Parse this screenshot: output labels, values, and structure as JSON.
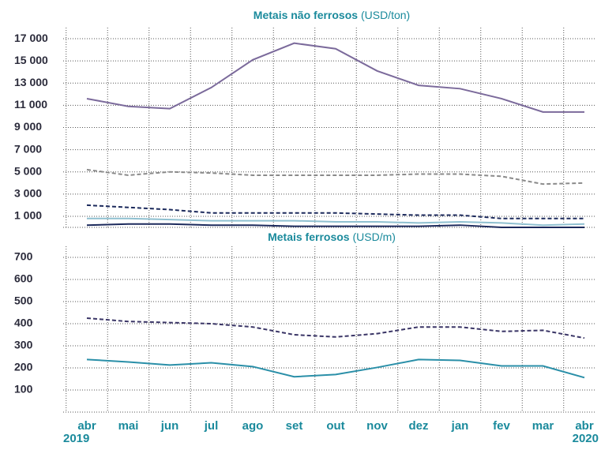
{
  "chart_data": [
    {
      "type": "line",
      "title": "Metais não ferrosos",
      "title_unit": "(USD/ton)",
      "ylim": [
        0,
        18000
      ],
      "yticks": [
        {
          "value": 1000,
          "label": "1 000"
        },
        {
          "value": 3000,
          "label": "3 000"
        },
        {
          "value": 5000,
          "label": "5 000"
        },
        {
          "value": 7000,
          "label": "7 000"
        },
        {
          "value": 9000,
          "label": "9 000"
        },
        {
          "value": 11000,
          "label": "11 000"
        },
        {
          "value": 13000,
          "label": "13 000"
        },
        {
          "value": 15000,
          "label": "15 000"
        },
        {
          "value": 17000,
          "label": "17 000"
        }
      ],
      "grid": true,
      "series": [
        {
          "color": "#7b6a9b",
          "dashed": false,
          "values": [
            11600,
            10900,
            10700,
            12600,
            15100,
            16600,
            16100,
            14100,
            12800,
            12500,
            11600,
            10400,
            10400
          ]
        },
        {
          "color": "#8a8a8a",
          "dashed": true,
          "values": [
            5200,
            4700,
            5000,
            4900,
            4700,
            4700,
            4700,
            4700,
            4800,
            4800,
            4600,
            3900,
            4000
          ]
        },
        {
          "color": "#1c2a5c",
          "dashed": true,
          "values": [
            2000,
            1800,
            1600,
            1300,
            1300,
            1300,
            1300,
            1200,
            1100,
            1100,
            800,
            800,
            800
          ]
        },
        {
          "color": "#8fc0d0",
          "dashed": false,
          "values": [
            800,
            800,
            700,
            600,
            600,
            600,
            500,
            500,
            400,
            500,
            400,
            200,
            300
          ]
        },
        {
          "color": "#1c2a5c",
          "dashed": false,
          "values": [
            200,
            300,
            300,
            200,
            200,
            100,
            100,
            100,
            100,
            200,
            0,
            0,
            0
          ]
        }
      ]
    },
    {
      "type": "line",
      "title": "Metais ferrosos",
      "title_unit": "(USD/m)",
      "categories": [
        "abr",
        "mai",
        "jun",
        "jul",
        "ago",
        "set",
        "out",
        "nov",
        "dez",
        "jan",
        "fev",
        "mar",
        "abr"
      ],
      "years": [
        "2019",
        "2020"
      ],
      "ylim": [
        0,
        750
      ],
      "yticks": [
        100,
        200,
        300,
        400,
        500,
        600,
        700
      ],
      "grid": true,
      "series": [
        {
          "color": "#3a3566",
          "dashed": true,
          "values": [
            425,
            410,
            405,
            400,
            385,
            350,
            340,
            355,
            385,
            385,
            365,
            370,
            335
          ]
        },
        {
          "color": "#2a8fa8",
          "dashed": false,
          "values": [
            238,
            227,
            213,
            223,
            206,
            160,
            170,
            202,
            238,
            234,
            209,
            209,
            156
          ]
        }
      ]
    }
  ]
}
